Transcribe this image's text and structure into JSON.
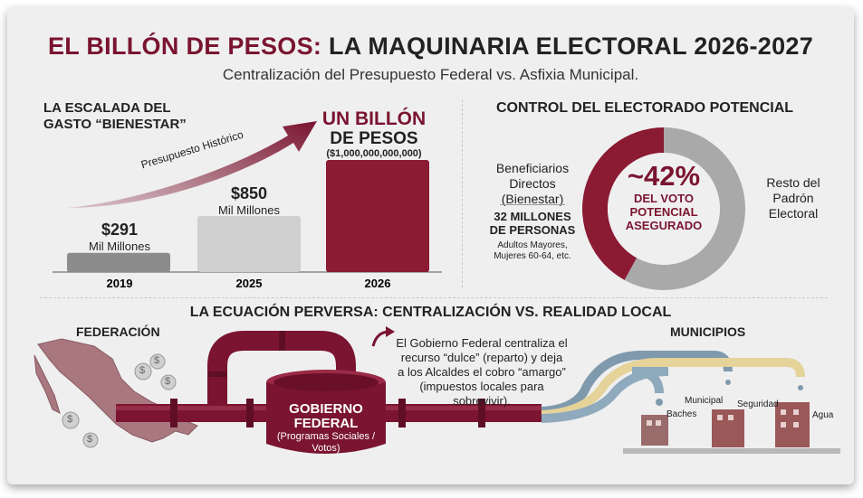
{
  "header": {
    "title_a": "EL BILLÓN DE PESOS:",
    "title_b": " LA MAQUINARIA ELECTORAL 2026-2027",
    "subtitle": "Centralización del Presupuesto Federal vs. Asfixia Municipal."
  },
  "left": {
    "heading_line1": "LA ESCALADA DEL",
    "heading_line2": "GASTO “BIENESTAR”",
    "arrow_label": "Presupuesto Histórico"
  },
  "chart_data": [
    {
      "type": "bar",
      "categories": [
        "2019",
        "2025",
        "2026"
      ],
      "values": [
        291,
        850,
        1000000
      ],
      "value_labels": [
        "$291",
        "$850",
        "UN BILLÓN DE PESOS"
      ],
      "unit_labels": [
        "Mil Millones",
        "Mil Millones",
        "($1,000,000,000,000)"
      ],
      "title": "LA ESCALADA DEL GASTO “BIENESTAR”",
      "colors": [
        "#8c8c8c",
        "#cfcfcf",
        "#8b1a33"
      ]
    },
    {
      "type": "pie",
      "title": "CONTROL DEL ELECTORADO POTENCIAL",
      "values": [
        42,
        58
      ],
      "labels": [
        "Beneficiarios Directos (Bienestar)",
        "Resto del Padrón Electoral"
      ],
      "center_label": "~42%",
      "colors": [
        "#8b1a33",
        "#a9a9a9"
      ]
    }
  ],
  "bars": {
    "b2019": {
      "value": "$291",
      "unit": "Mil Millones",
      "year": "2019"
    },
    "b2025": {
      "value": "$850",
      "unit": "Mil Millones",
      "year": "2025"
    },
    "b2026": {
      "value_l1": "UN BILLÓN",
      "value_l2": "DE PESOS",
      "unit": "($1,000,000,000,000)",
      "year": "2026"
    }
  },
  "donut": {
    "heading": "CONTROL DEL ELECTORADO POTENCIAL",
    "left_l1": "Beneficiarios",
    "left_l2": "Directos",
    "left_l3": "(Bienestar)",
    "count_l1": "32 MILLONES",
    "count_l2": "DE PERSONAS",
    "small_l1": "Adultos Mayores,",
    "small_l2": "Mujeres 60-64, etc.",
    "pct": "~42%",
    "c_l1": "DEL VOTO",
    "c_l2": "POTENCIAL",
    "c_l3": "ASEGURADO",
    "right_l1": "Resto del",
    "right_l2": "Padrón",
    "right_l3": "Electoral"
  },
  "bottom": {
    "heading": "LA ECUACIÓN PERVERSA: CENTRALIZACIÓN VS. REALIDAD LOCAL",
    "federacion": "FEDERACIÓN",
    "municipios": "MUNICIPIOS",
    "tank_l1": "GOBIERNO",
    "tank_l2": "FEDERAL",
    "tank_l3": "(Programas Sociales /",
    "tank_l4": "Votos)",
    "note_l1": "El Gobierno Federal centraliza el",
    "note_l2": "recurso “dulce” (reparto) y deja",
    "note_l3": "a los Alcaldes el cobro “amargo”",
    "note_l4": "(impuestos locales para",
    "note_l5": "sobrevivir).",
    "b1": "Baches",
    "b2": "Municipal",
    "b3": "Seguridad",
    "b4": "Agua",
    "coin": "$"
  }
}
